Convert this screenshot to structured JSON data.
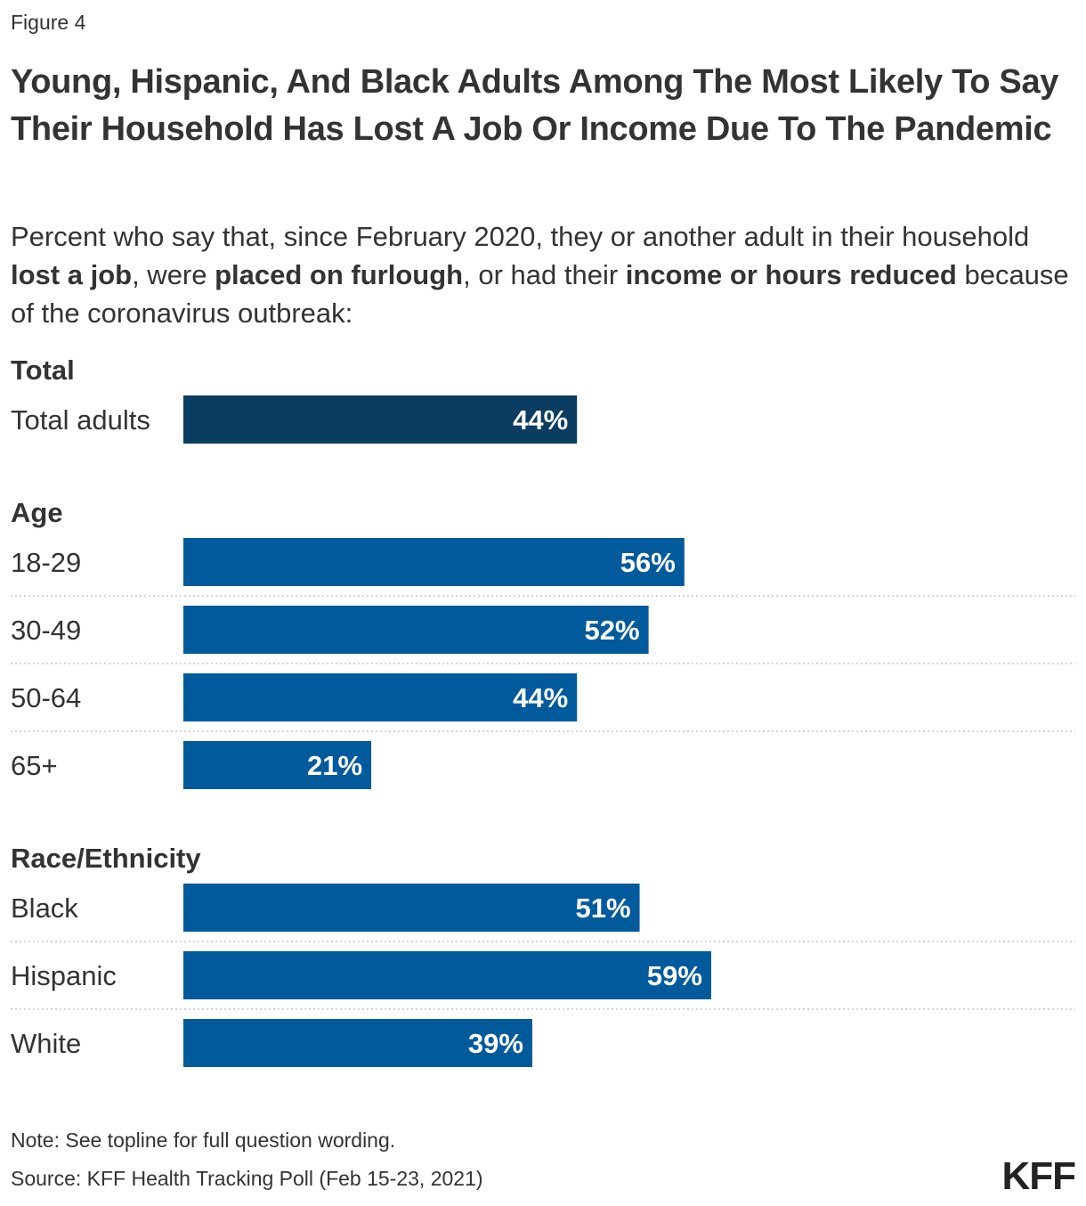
{
  "figure_label": "Figure 4",
  "title": "Young, Hispanic, And Black Adults Among The Most Likely To Say Their Household Has Lost A Job Or Income Due To The Pandemic",
  "subtitle": {
    "part1": "Percent who say that, since February 2020, they or another adult in their household ",
    "bold1": "lost a job",
    "part2": ", were ",
    "bold2": "placed on furlough",
    "part3": ", or had their ",
    "bold3": "income or hours reduced",
    "part4": " because of the coronavirus outbreak:"
  },
  "colors": {
    "total_bar": "#0b3c61",
    "group_bar": "#005a9c",
    "label_text": "#ffffff",
    "divider": "#c8c8c8"
  },
  "chart_data": {
    "type": "bar",
    "orientation": "horizontal",
    "value_suffix": "%",
    "xlim": [
      0,
      100
    ],
    "grid": false,
    "groups": [
      {
        "name": "Total",
        "categories": [
          "Total adults"
        ],
        "values": [
          44
        ]
      },
      {
        "name": "Age",
        "categories": [
          "18-29",
          "30-49",
          "50-64",
          "65+"
        ],
        "values": [
          56,
          52,
          44,
          21
        ]
      },
      {
        "name": "Race/Ethnicity",
        "categories": [
          "Black",
          "Hispanic",
          "White"
        ],
        "values": [
          51,
          59,
          39
        ]
      }
    ]
  },
  "note": "Note: See topline for full question wording.",
  "source": "Source: KFF Health Tracking Poll (Feb 15-23, 2021)",
  "logo_text": "KFF"
}
